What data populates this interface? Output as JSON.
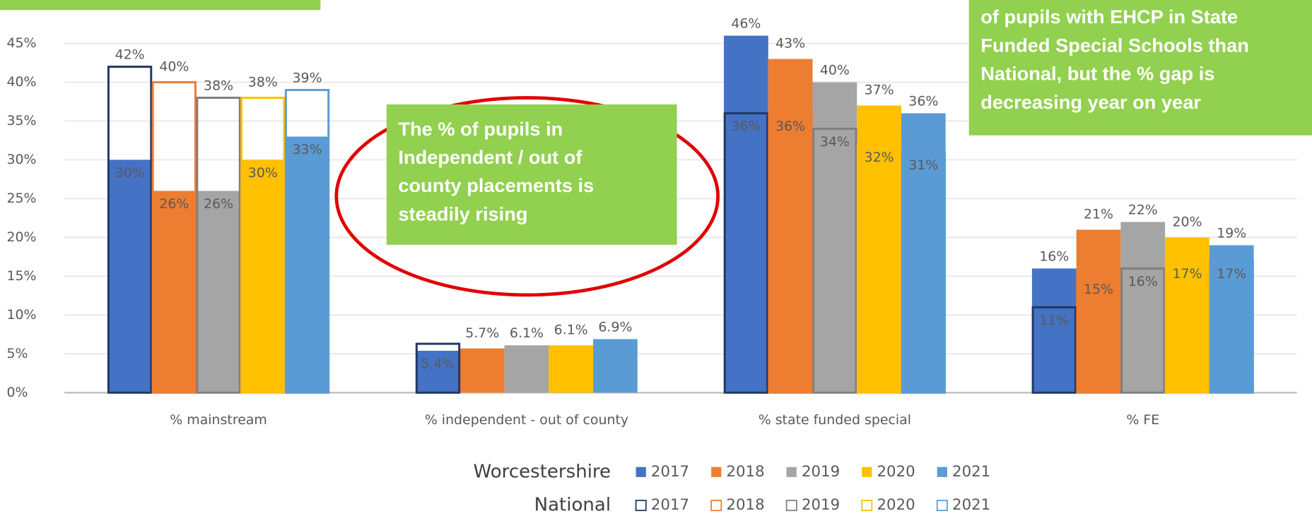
{
  "chart_data": {
    "type": "bar",
    "categories": [
      "% mainstream",
      "% independent - out of county",
      "% state funded special",
      "% FE"
    ],
    "groups": [
      {
        "name": "Worcestershire",
        "fill": true,
        "series": [
          {
            "name": "2017",
            "color": "#4472c4",
            "values": [
              30,
              5.4,
              46,
              16
            ],
            "value_labels": [
              "30%",
              "5.4%",
              "46%",
              "16%"
            ]
          },
          {
            "name": "2018",
            "color": "#ed7d31",
            "values": [
              26,
              5.7,
              43,
              21
            ],
            "value_labels": [
              "26%",
              "5.7%",
              "43%",
              "21%"
            ]
          },
          {
            "name": "2019",
            "color": "#a5a5a5",
            "values": [
              26,
              6.1,
              40,
              22
            ],
            "value_labels": [
              "26%",
              "6.1%",
              "40%",
              "22%"
            ]
          },
          {
            "name": "2020",
            "color": "#ffc000",
            "values": [
              30,
              6.1,
              37,
              20
            ],
            "value_labels": [
              "30%",
              "6.1%",
              "37%",
              "20%"
            ]
          },
          {
            "name": "2021",
            "color": "#5b9bd5",
            "values": [
              33,
              6.9,
              36,
              19
            ],
            "value_labels": [
              "33%",
              "6.9%",
              "36%",
              "19%"
            ]
          }
        ]
      },
      {
        "name": "National",
        "fill": false,
        "series": [
          {
            "name": "2017",
            "color": "#203864",
            "values": [
              42,
              6.3,
              36,
              11
            ],
            "value_labels": [
              "42%",
              null,
              "36%",
              "11%"
            ]
          },
          {
            "name": "2018",
            "color": "#ed7d31",
            "values": [
              40,
              null,
              36,
              15
            ],
            "value_labels": [
              "40%",
              null,
              "36%",
              "15%"
            ]
          },
          {
            "name": "2019",
            "color": "#7f7f7f",
            "values": [
              38,
              null,
              34,
              16
            ],
            "value_labels": [
              "38%",
              null,
              "34%",
              "16%"
            ]
          },
          {
            "name": "2020",
            "color": "#ffc000",
            "values": [
              38,
              null,
              32,
              17
            ],
            "value_labels": [
              "38%",
              null,
              "32%",
              "17%"
            ]
          },
          {
            "name": "2021",
            "color": "#5b9bd5",
            "values": [
              39,
              null,
              31,
              17
            ],
            "value_labels": [
              "39%",
              null,
              "31%",
              "17%"
            ]
          }
        ]
      }
    ],
    "ylim": [
      0,
      50
    ],
    "yticks": [
      {
        "value": 0,
        "label": "0%"
      },
      {
        "value": 5,
        "label": "5%"
      },
      {
        "value": 10,
        "label": "10%"
      },
      {
        "value": 15,
        "label": "15%"
      },
      {
        "value": 20,
        "label": "20%"
      },
      {
        "value": 25,
        "label": "25%"
      },
      {
        "value": 30,
        "label": "30%"
      },
      {
        "value": 35,
        "label": "35%"
      },
      {
        "value": 40,
        "label": "40%"
      },
      {
        "value": 45,
        "label": "45%"
      }
    ],
    "grid": true,
    "annotations": [
      {
        "lines": [
          "The % of pupils in",
          "Independent / out of",
          "county placements is",
          "steadily rising"
        ]
      },
      {
        "lines": [
          "of pupils with EHCP in State",
          "Funded Special Schools than",
          "National, but the % gap is",
          "decreasing year on year"
        ]
      }
    ]
  }
}
